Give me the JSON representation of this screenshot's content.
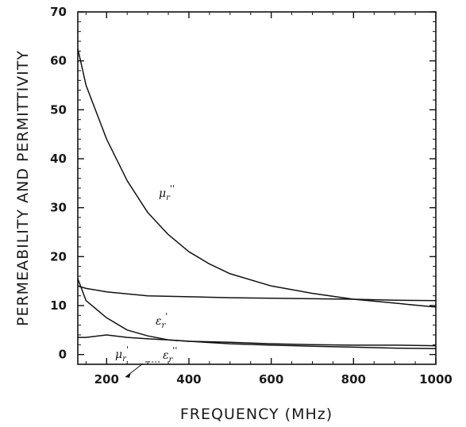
{
  "chart_data": {
    "type": "line",
    "title": "",
    "xlabel": "FREQUENCY (MHz)",
    "ylabel": "PERMEABILITY AND PERMITTIVITY",
    "xlim": [
      130,
      1000
    ],
    "ylim": [
      -2,
      70
    ],
    "xticks": [
      200,
      400,
      600,
      800,
      1000
    ],
    "yticks": [
      0,
      10,
      20,
      30,
      40,
      50,
      60,
      70
    ],
    "grid": false,
    "legend": "none",
    "series": [
      {
        "name": "μr''",
        "x": [
          130,
          150,
          200,
          250,
          300,
          350,
          400,
          450,
          500,
          600,
          700,
          800,
          900,
          1000
        ],
        "y": [
          62.5,
          55,
          44,
          35.5,
          29,
          24.5,
          21,
          18.5,
          16.5,
          14,
          12.5,
          11.3,
          10.5,
          9.7
        ]
      },
      {
        "name": "εr'",
        "x": [
          130,
          150,
          200,
          300,
          400,
          500,
          600,
          700,
          800,
          900,
          1000
        ],
        "y": [
          14,
          13.5,
          12.8,
          12,
          11.8,
          11.6,
          11.5,
          11.4,
          11.3,
          11.1,
          11
        ]
      },
      {
        "name": "μr'",
        "x": [
          130,
          150,
          200,
          250,
          300,
          350,
          400,
          500,
          600,
          700,
          800,
          900,
          1000
        ],
        "y": [
          15.5,
          11,
          7.5,
          5,
          3.8,
          3,
          2.7,
          2.2,
          1.9,
          1.7,
          1.5,
          1.3,
          1.2
        ]
      },
      {
        "name": "εr''",
        "x": [
          130,
          150,
          200,
          250,
          300,
          350,
          400,
          500,
          600,
          700,
          800,
          900,
          1000
        ],
        "y": [
          3.5,
          3.5,
          4,
          3.5,
          3.2,
          3,
          2.7,
          2.5,
          2.2,
          2,
          1.9,
          1.9,
          1.8
        ]
      }
    ],
    "labels": {
      "mu_double": {
        "base": "μ",
        "sub": "r",
        "sup": "''"
      },
      "eps_single": {
        "base": "ε",
        "sub": "r",
        "sup": "'"
      },
      "mu_single": {
        "base": "μ",
        "sub": "r",
        "sup": "'"
      },
      "eps_double": {
        "base": "ε",
        "sub": "r",
        "sup": "''"
      }
    }
  }
}
